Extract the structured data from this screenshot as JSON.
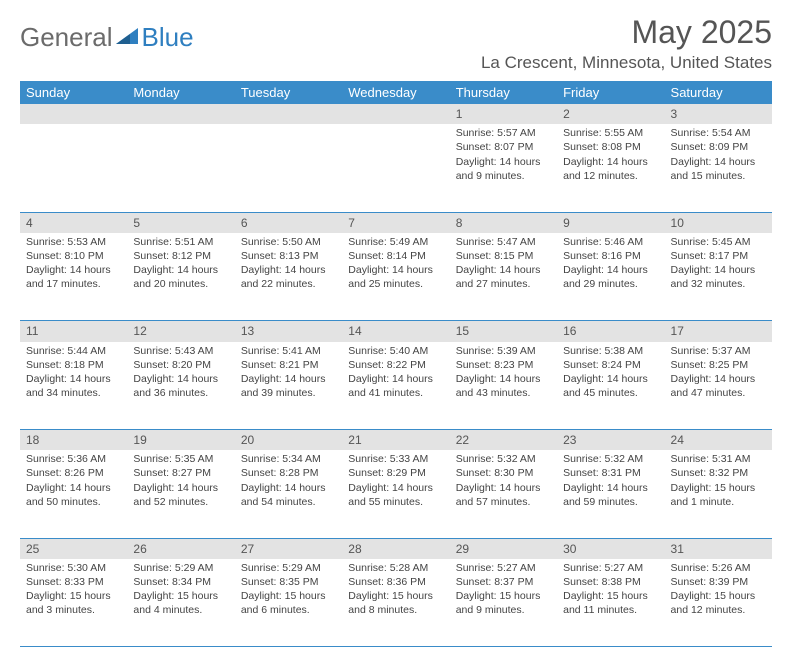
{
  "brand": {
    "part1": "General",
    "part2": "Blue"
  },
  "title": "May 2025",
  "location": "La Crescent, Minnesota, United States",
  "colors": {
    "header_bg": "#3a8cc9",
    "header_text": "#ffffff",
    "daynum_bg": "#e3e3e3",
    "rule": "#3a8cc9",
    "text": "#444444"
  },
  "dayHeaders": [
    "Sunday",
    "Monday",
    "Tuesday",
    "Wednesday",
    "Thursday",
    "Friday",
    "Saturday"
  ],
  "weeks": [
    [
      null,
      null,
      null,
      null,
      {
        "n": "1",
        "sr": "5:57 AM",
        "ss": "8:07 PM",
        "dl": "14 hours and 9 minutes."
      },
      {
        "n": "2",
        "sr": "5:55 AM",
        "ss": "8:08 PM",
        "dl": "14 hours and 12 minutes."
      },
      {
        "n": "3",
        "sr": "5:54 AM",
        "ss": "8:09 PM",
        "dl": "14 hours and 15 minutes."
      }
    ],
    [
      {
        "n": "4",
        "sr": "5:53 AM",
        "ss": "8:10 PM",
        "dl": "14 hours and 17 minutes."
      },
      {
        "n": "5",
        "sr": "5:51 AM",
        "ss": "8:12 PM",
        "dl": "14 hours and 20 minutes."
      },
      {
        "n": "6",
        "sr": "5:50 AM",
        "ss": "8:13 PM",
        "dl": "14 hours and 22 minutes."
      },
      {
        "n": "7",
        "sr": "5:49 AM",
        "ss": "8:14 PM",
        "dl": "14 hours and 25 minutes."
      },
      {
        "n": "8",
        "sr": "5:47 AM",
        "ss": "8:15 PM",
        "dl": "14 hours and 27 minutes."
      },
      {
        "n": "9",
        "sr": "5:46 AM",
        "ss": "8:16 PM",
        "dl": "14 hours and 29 minutes."
      },
      {
        "n": "10",
        "sr": "5:45 AM",
        "ss": "8:17 PM",
        "dl": "14 hours and 32 minutes."
      }
    ],
    [
      {
        "n": "11",
        "sr": "5:44 AM",
        "ss": "8:18 PM",
        "dl": "14 hours and 34 minutes."
      },
      {
        "n": "12",
        "sr": "5:43 AM",
        "ss": "8:20 PM",
        "dl": "14 hours and 36 minutes."
      },
      {
        "n": "13",
        "sr": "5:41 AM",
        "ss": "8:21 PM",
        "dl": "14 hours and 39 minutes."
      },
      {
        "n": "14",
        "sr": "5:40 AM",
        "ss": "8:22 PM",
        "dl": "14 hours and 41 minutes."
      },
      {
        "n": "15",
        "sr": "5:39 AM",
        "ss": "8:23 PM",
        "dl": "14 hours and 43 minutes."
      },
      {
        "n": "16",
        "sr": "5:38 AM",
        "ss": "8:24 PM",
        "dl": "14 hours and 45 minutes."
      },
      {
        "n": "17",
        "sr": "5:37 AM",
        "ss": "8:25 PM",
        "dl": "14 hours and 47 minutes."
      }
    ],
    [
      {
        "n": "18",
        "sr": "5:36 AM",
        "ss": "8:26 PM",
        "dl": "14 hours and 50 minutes."
      },
      {
        "n": "19",
        "sr": "5:35 AM",
        "ss": "8:27 PM",
        "dl": "14 hours and 52 minutes."
      },
      {
        "n": "20",
        "sr": "5:34 AM",
        "ss": "8:28 PM",
        "dl": "14 hours and 54 minutes."
      },
      {
        "n": "21",
        "sr": "5:33 AM",
        "ss": "8:29 PM",
        "dl": "14 hours and 55 minutes."
      },
      {
        "n": "22",
        "sr": "5:32 AM",
        "ss": "8:30 PM",
        "dl": "14 hours and 57 minutes."
      },
      {
        "n": "23",
        "sr": "5:32 AM",
        "ss": "8:31 PM",
        "dl": "14 hours and 59 minutes."
      },
      {
        "n": "24",
        "sr": "5:31 AM",
        "ss": "8:32 PM",
        "dl": "15 hours and 1 minute."
      }
    ],
    [
      {
        "n": "25",
        "sr": "5:30 AM",
        "ss": "8:33 PM",
        "dl": "15 hours and 3 minutes."
      },
      {
        "n": "26",
        "sr": "5:29 AM",
        "ss": "8:34 PM",
        "dl": "15 hours and 4 minutes."
      },
      {
        "n": "27",
        "sr": "5:29 AM",
        "ss": "8:35 PM",
        "dl": "15 hours and 6 minutes."
      },
      {
        "n": "28",
        "sr": "5:28 AM",
        "ss": "8:36 PM",
        "dl": "15 hours and 8 minutes."
      },
      {
        "n": "29",
        "sr": "5:27 AM",
        "ss": "8:37 PM",
        "dl": "15 hours and 9 minutes."
      },
      {
        "n": "30",
        "sr": "5:27 AM",
        "ss": "8:38 PM",
        "dl": "15 hours and 11 minutes."
      },
      {
        "n": "31",
        "sr": "5:26 AM",
        "ss": "8:39 PM",
        "dl": "15 hours and 12 minutes."
      }
    ]
  ],
  "labels": {
    "sunrise": "Sunrise: ",
    "sunset": "Sunset: ",
    "daylight": "Daylight: "
  }
}
